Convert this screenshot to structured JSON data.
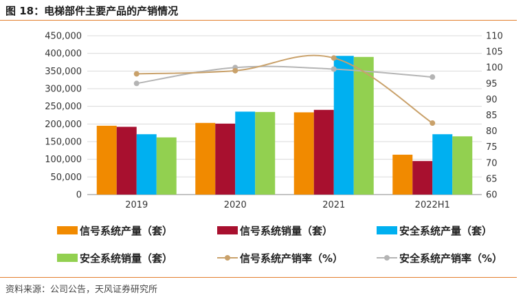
{
  "title": "图 18：电梯部件主要产品的产销情况",
  "source": "资料来源：公司公告，天风证券研究所",
  "colors": {
    "accent_rule": "#e37d2b",
    "signal_output": "#f18a00",
    "signal_sales": "#a8102f",
    "safety_output": "#00b0f0",
    "safety_sales": "#92d050",
    "signal_rate": "#c9a16a",
    "safety_rate": "#b4b4b4"
  },
  "chart_data": {
    "type": "bar",
    "categories": [
      "2019",
      "2020",
      "2021",
      "2022H1"
    ],
    "series": [
      {
        "name": "信号系统产量（套）",
        "kind": "bar",
        "axis": "left",
        "color_key": "signal_output",
        "values": [
          195000,
          203000,
          233000,
          113000
        ]
      },
      {
        "name": "信号系统销量（套）",
        "kind": "bar",
        "axis": "left",
        "color_key": "signal_sales",
        "values": [
          192000,
          201000,
          240000,
          95000
        ]
      },
      {
        "name": "安全系统产量（套）",
        "kind": "bar",
        "axis": "left",
        "color_key": "safety_output",
        "values": [
          171000,
          235000,
          393000,
          171000
        ]
      },
      {
        "name": "安全系统销量（套）",
        "kind": "bar",
        "axis": "left",
        "color_key": "safety_sales",
        "values": [
          162000,
          234000,
          390000,
          165000
        ]
      },
      {
        "name": "信号系统产销率（%）",
        "kind": "line",
        "axis": "right",
        "color_key": "signal_rate",
        "values": [
          98,
          99,
          103,
          82.5
        ]
      },
      {
        "name": "安全系统产销率（%）",
        "kind": "line",
        "axis": "right",
        "color_key": "safety_rate",
        "values": [
          95,
          100,
          99.5,
          97
        ]
      }
    ],
    "y_left": {
      "min": 0,
      "max": 450000,
      "step": 50000,
      "ticks": [
        "0",
        "50,000",
        "100,000",
        "150,000",
        "200,000",
        "250,000",
        "300,000",
        "350,000",
        "400,000",
        "450,000"
      ]
    },
    "y_right": {
      "min": 60,
      "max": 110,
      "step": 5,
      "ticks": [
        "60",
        "65",
        "70",
        "75",
        "80",
        "85",
        "90",
        "95",
        "100",
        "105",
        "110"
      ]
    },
    "grid": true,
    "legend": "bottom"
  }
}
